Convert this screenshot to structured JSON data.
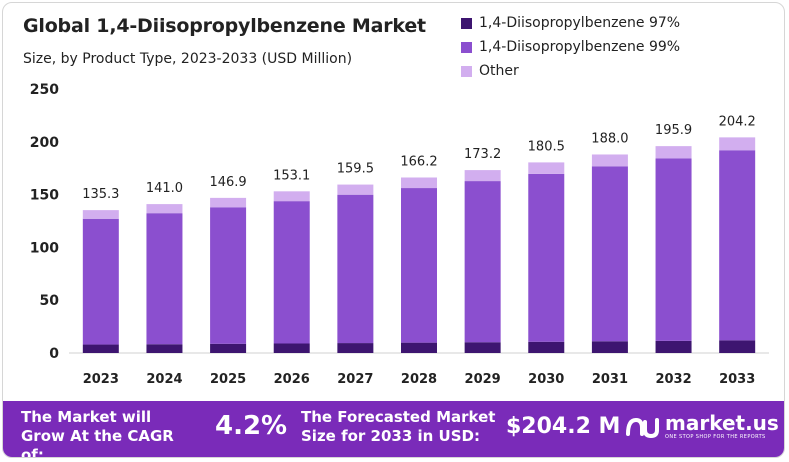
{
  "header": {
    "title": "Global 1,4-Diisopropylbenzene  Market",
    "subtitle": "Size, by Product Type, 2023-2033 (USD Million)"
  },
  "legend": [
    {
      "label": "1,4-Diisopropylbenzene 97%",
      "color": "#3d1570"
    },
    {
      "label": "1,4-Diisopropylbenzene 99%",
      "color": "#8b4fcf"
    },
    {
      "label": "Other",
      "color": "#d2aeef"
    }
  ],
  "chart_data": {
    "type": "bar",
    "stacked": true,
    "title": "Global 1,4-Diisopropylbenzene  Market",
    "subtitle": "Size, by Product Type, 2023-2033 (USD Million)",
    "categories": [
      "2023",
      "2024",
      "2025",
      "2026",
      "2027",
      "2028",
      "2029",
      "2030",
      "2031",
      "2032",
      "2033"
    ],
    "series": [
      {
        "name": "1,4-Diisopropylbenzene 97%",
        "color": "#3d1570",
        "values": [
          8.0,
          8.3,
          8.7,
          9.0,
          9.4,
          9.8,
          10.2,
          10.6,
          11.1,
          11.5,
          12.0
        ]
      },
      {
        "name": "1,4-Diisopropylbenzene 99%",
        "color": "#8b4fcf",
        "values": [
          119.1,
          124.1,
          129.3,
          134.8,
          140.5,
          146.4,
          152.6,
          159.0,
          165.7,
          172.7,
          180.0
        ]
      },
      {
        "name": "Other",
        "color": "#d2aeef",
        "values": [
          8.2,
          8.6,
          8.9,
          9.3,
          9.6,
          10.0,
          10.4,
          10.9,
          11.2,
          11.7,
          12.2
        ]
      }
    ],
    "totals": [
      "135.3",
      "141.0",
      "146.9",
      "153.1",
      "159.5",
      "166.2",
      "173.2",
      "180.5",
      "188.0",
      "195.9",
      "204.2"
    ],
    "yticks": [
      "0",
      "50",
      "100",
      "150",
      "200",
      "250"
    ],
    "ylim": [
      0,
      250
    ],
    "xlabel": "",
    "ylabel": "",
    "legend_position": "top-right",
    "grid": false
  },
  "footer": {
    "growth_label": "The Market will Grow At the CAGR of:",
    "cagr": "4.2%",
    "forecast_label": "The Forecasted Market Size for 2033 in USD:",
    "forecast_value": "$204.2 M",
    "brand": "market.us",
    "tagline": "ONE STOP SHOP FOR THE REPORTS"
  }
}
